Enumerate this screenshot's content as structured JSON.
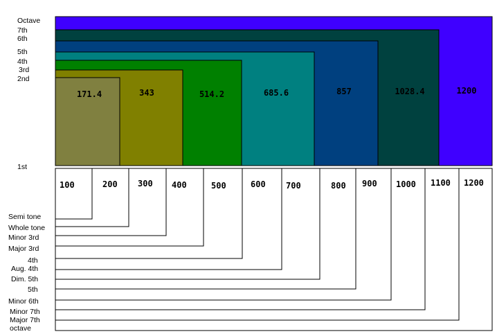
{
  "degree_labels": [
    "Octave",
    "7th",
    "6th",
    "5th",
    "4th",
    "3rd",
    "2nd",
    "1st"
  ],
  "blocks": [
    {
      "label": "1200",
      "color": "#3f00ff"
    },
    {
      "label": "1028.4",
      "color": "#00413f"
    },
    {
      "label": "857",
      "color": "#00407f"
    },
    {
      "label": "685.6",
      "color": "#008080"
    },
    {
      "label": "514.2",
      "color": "#008000"
    },
    {
      "label": "343",
      "color": "#808000"
    },
    {
      "label": "171.4",
      "color": "#808040"
    }
  ],
  "cents_labels": [
    "100",
    "200",
    "300",
    "400",
    "500",
    "600",
    "700",
    "800",
    "900",
    "1000",
    "1100",
    "1200"
  ],
  "interval_labels": [
    "Semi tone",
    "Whole tone",
    "Minor 3rd",
    "Major 3rd",
    "4th",
    "Aug. 4th",
    "Dim. 5th",
    "5th",
    "Minor 6th",
    "Minor 7th",
    "Major 7th",
    "octave"
  ]
}
